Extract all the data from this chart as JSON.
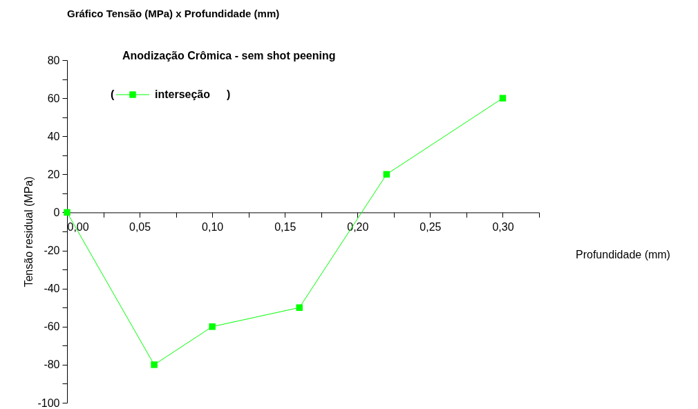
{
  "chart_data": {
    "type": "line",
    "title": "Gráfico Tensão (MPa) x Profundidade (mm)",
    "subtitle": "Anodização Crômica - sem shot peening",
    "xlabel": "Profundidade (mm)",
    "ylabel": "Tensão residual (MPa)",
    "x": [
      0,
      0.06,
      0.1,
      0.16,
      0.22,
      0.3
    ],
    "series": [
      {
        "name": "interseção",
        "color": "#00ff00",
        "values": [
          0,
          -80,
          -60,
          -50,
          20,
          60
        ]
      }
    ],
    "xlim": [
      0,
      0.325
    ],
    "xticks": [
      {
        "value": 0,
        "label": "0,00"
      },
      {
        "value": 0.025,
        "label": null
      },
      {
        "value": 0.05,
        "label": "0,05"
      },
      {
        "value": 0.075,
        "label": null
      },
      {
        "value": 0.1,
        "label": "0,10"
      },
      {
        "value": 0.125,
        "label": null
      },
      {
        "value": 0.15,
        "label": "0,15"
      },
      {
        "value": 0.175,
        "label": null
      },
      {
        "value": 0.2,
        "label": "0,20"
      },
      {
        "value": 0.225,
        "label": null
      },
      {
        "value": 0.25,
        "label": "0,25"
      },
      {
        "value": 0.275,
        "label": null
      },
      {
        "value": 0.3,
        "label": "0,30"
      },
      {
        "value": 0.325,
        "label": null
      }
    ],
    "ylim": [
      -100,
      80
    ],
    "yticks": [
      -100,
      {
        "value": -90,
        "label": null
      },
      -80,
      {
        "value": -70,
        "label": null
      },
      -60,
      {
        "value": -50,
        "label": null
      },
      -40,
      {
        "value": -30,
        "label": null
      },
      -20,
      {
        "value": -10,
        "label": null
      },
      0,
      {
        "value": 10,
        "label": null
      },
      20,
      {
        "value": 30,
        "label": null
      },
      40,
      {
        "value": 50,
        "label": null
      },
      60,
      {
        "value": 70,
        "label": null
      },
      80
    ],
    "annotations": [
      "(",
      ")"
    ],
    "legend": "top left",
    "grid": false,
    "marker": "square",
    "line_style": "solid"
  }
}
